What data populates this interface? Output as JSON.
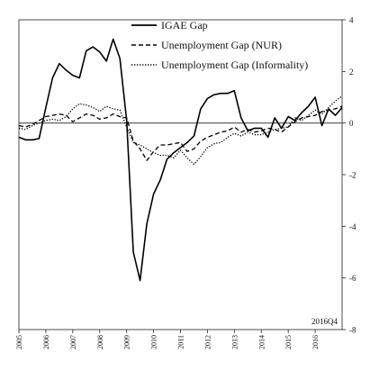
{
  "chart_data": {
    "type": "line",
    "title": "",
    "xlabel": "",
    "ylabel": "",
    "x_axis": {
      "ticks": [
        "2005",
        "2006",
        "2007",
        "2008",
        "2009",
        "2010",
        "2011",
        "2012",
        "2013",
        "2014",
        "2015",
        "2016"
      ],
      "range": [
        2005.0,
        2017.0
      ]
    },
    "y_axis": {
      "position": "right",
      "ticks": [
        "4",
        "2",
        "0",
        "-2",
        "-4",
        "-6",
        "-8"
      ],
      "tick_values": [
        4,
        2,
        0,
        -2,
        -4,
        -6,
        -8
      ],
      "range": [
        -8,
        4
      ]
    },
    "zero_line": true,
    "grid": false,
    "annotation": "2016Q4",
    "legend": {
      "placement": "top-center"
    },
    "series": [
      {
        "name": "IGAE Gap",
        "style": "solid",
        "x": [
          2005.0,
          2005.25,
          2005.5,
          2005.75,
          2006.0,
          2006.25,
          2006.5,
          2006.75,
          2007.0,
          2007.25,
          2007.5,
          2007.75,
          2008.0,
          2008.25,
          2008.5,
          2008.75,
          2009.0,
          2009.25,
          2009.5,
          2009.75,
          2010.0,
          2010.25,
          2010.5,
          2010.75,
          2011.0,
          2011.25,
          2011.5,
          2011.75,
          2012.0,
          2012.25,
          2012.5,
          2012.75,
          2013.0,
          2013.25,
          2013.5,
          2013.75,
          2014.0,
          2014.25,
          2014.5,
          2014.75,
          2015.0,
          2015.25,
          2015.5,
          2015.75,
          2016.0,
          2016.25,
          2016.5,
          2016.75,
          2017.0
        ],
        "values": [
          -0.55,
          -0.65,
          -0.65,
          -0.6,
          0.6,
          1.75,
          2.3,
          2.05,
          1.85,
          1.75,
          2.8,
          2.95,
          2.75,
          2.4,
          3.25,
          2.5,
          0.1,
          -5.0,
          -6.1,
          -3.9,
          -2.75,
          -2.2,
          -1.4,
          -1.15,
          -0.95,
          -0.75,
          -0.5,
          0.55,
          0.95,
          1.1,
          1.15,
          1.15,
          1.25,
          0.2,
          -0.3,
          -0.2,
          -0.2,
          -0.55,
          0.2,
          -0.2,
          0.25,
          0.1,
          0.4,
          0.65,
          1.0,
          -0.1,
          0.55,
          0.3,
          0.6
        ]
      },
      {
        "name": "Unemployment Gap (NUR)",
        "style": "dashed",
        "x": [
          2005.0,
          2005.25,
          2005.5,
          2005.75,
          2006.0,
          2006.25,
          2006.5,
          2006.75,
          2007.0,
          2007.25,
          2007.5,
          2007.75,
          2008.0,
          2008.25,
          2008.5,
          2008.75,
          2009.0,
          2009.25,
          2009.5,
          2009.75,
          2010.0,
          2010.25,
          2010.5,
          2010.75,
          2011.0,
          2011.25,
          2011.5,
          2011.75,
          2012.0,
          2012.25,
          2012.5,
          2012.75,
          2013.0,
          2013.25,
          2013.5,
          2013.75,
          2014.0,
          2014.25,
          2014.5,
          2014.75,
          2015.0,
          2015.25,
          2015.5,
          2015.75,
          2016.0,
          2016.25,
          2016.5,
          2016.75,
          2017.0
        ],
        "values": [
          -0.1,
          -0.15,
          -0.05,
          0.1,
          0.25,
          0.3,
          0.35,
          0.3,
          0.05,
          0.2,
          0.35,
          0.3,
          0.15,
          0.2,
          0.35,
          0.25,
          0.2,
          -0.7,
          -1.0,
          -1.45,
          -1.1,
          -0.85,
          -0.85,
          -0.8,
          -0.75,
          -1.1,
          -1.0,
          -0.7,
          -0.55,
          -0.45,
          -0.35,
          -0.3,
          -0.15,
          -0.35,
          -0.25,
          -0.35,
          -0.3,
          -0.2,
          -0.25,
          -0.35,
          -0.15,
          0.05,
          0.2,
          0.25,
          0.3,
          0.45,
          0.5,
          0.55,
          0.65
        ]
      },
      {
        "name": "Unemployment Gap (Informality)",
        "style": "dotted",
        "x": [
          2005.0,
          2005.25,
          2005.5,
          2005.75,
          2006.0,
          2006.25,
          2006.5,
          2006.75,
          2007.0,
          2007.25,
          2007.5,
          2007.75,
          2008.0,
          2008.25,
          2008.5,
          2008.75,
          2009.0,
          2009.25,
          2009.5,
          2009.75,
          2010.0,
          2010.25,
          2010.5,
          2010.75,
          2011.0,
          2011.25,
          2011.5,
          2011.75,
          2012.0,
          2012.25,
          2012.5,
          2012.75,
          2013.0,
          2013.25,
          2013.5,
          2013.75,
          2014.0,
          2014.25,
          2014.5,
          2014.75,
          2015.0,
          2015.25,
          2015.5,
          2015.75,
          2016.0,
          2016.25,
          2016.5,
          2016.75,
          2017.0
        ],
        "values": [
          -0.2,
          -0.25,
          -0.1,
          0.0,
          0.1,
          0.15,
          0.1,
          0.25,
          0.55,
          0.75,
          0.7,
          0.6,
          0.45,
          0.65,
          0.55,
          0.5,
          -0.15,
          -0.75,
          -0.85,
          -1.0,
          -1.15,
          -1.25,
          -1.25,
          -1.35,
          -1.05,
          -1.35,
          -1.6,
          -1.3,
          -0.95,
          -0.8,
          -0.75,
          -0.55,
          -0.4,
          -0.5,
          -0.35,
          -0.45,
          -0.45,
          -0.35,
          -0.25,
          -0.2,
          -0.15,
          0.2,
          0.1,
          0.3,
          0.5,
          0.35,
          0.6,
          0.85,
          1.05
        ]
      }
    ]
  }
}
